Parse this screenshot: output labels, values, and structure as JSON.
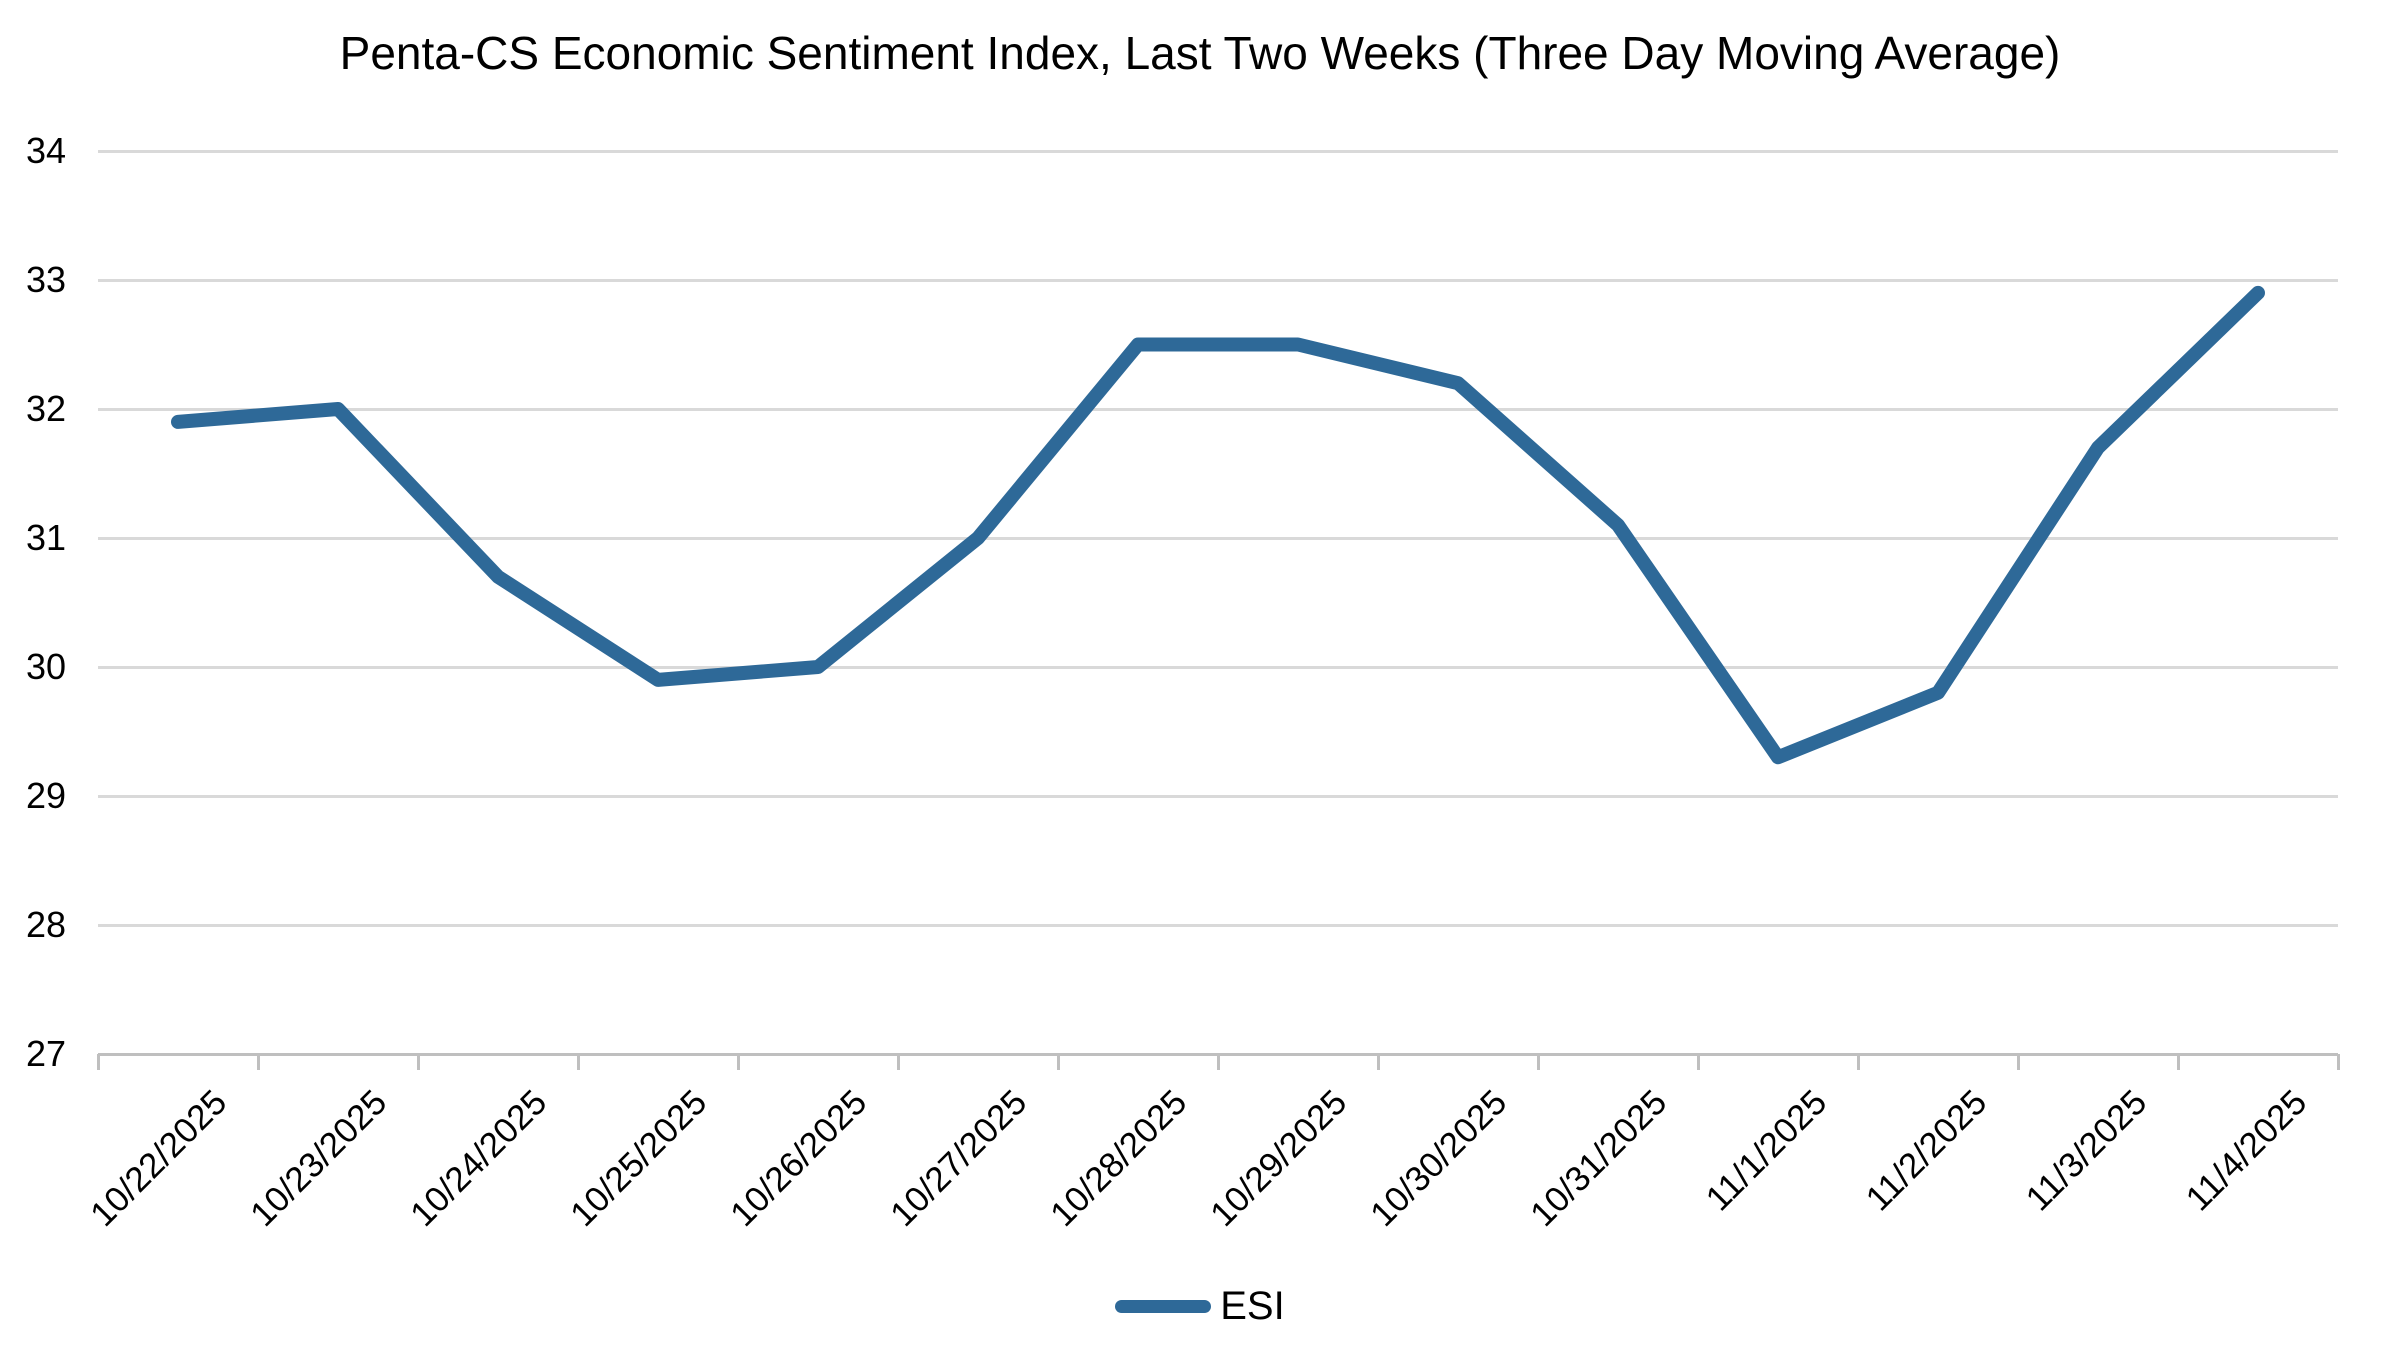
{
  "chart_data": {
    "type": "line",
    "title": "Penta-CS Economic Sentiment Index, Last Two Weeks (Three Day Moving Average)",
    "categories": [
      "10/22/2025",
      "10/23/2025",
      "10/24/2025",
      "10/25/2025",
      "10/26/2025",
      "10/27/2025",
      "10/28/2025",
      "10/29/2025",
      "10/30/2025",
      "10/31/2025",
      "11/1/2025",
      "11/2/2025",
      "11/3/2025",
      "11/4/2025"
    ],
    "series": [
      {
        "name": "ESI",
        "values": [
          31.9,
          32.0,
          30.7,
          29.9,
          30.0,
          31.0,
          32.5,
          32.5,
          32.2,
          31.1,
          29.3,
          29.8,
          31.7,
          32.9
        ]
      }
    ],
    "xlabel": "",
    "ylabel": "",
    "ylim": [
      27,
      34
    ],
    "yticks": [
      34,
      33,
      32,
      31,
      30,
      29,
      28,
      27
    ],
    "grid": "horizontal",
    "legend_position": "bottom"
  },
  "colors": {
    "line": "#2e6998",
    "gridline": "#d9d9d9",
    "axis": "#bfbfbf",
    "text": "#000000",
    "background": "#ffffff"
  }
}
